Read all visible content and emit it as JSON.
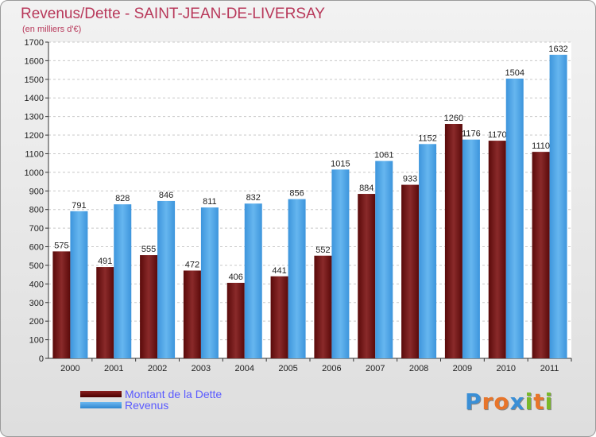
{
  "chart_data": {
    "type": "bar",
    "title": "Revenus/Dette - SAINT-JEAN-DE-LIVERSAY",
    "subtitle": "(en milliers d'€)",
    "categories": [
      "2000",
      "2001",
      "2002",
      "2003",
      "2004",
      "2005",
      "2006",
      "2007",
      "2008",
      "2009",
      "2010",
      "2011"
    ],
    "series": [
      {
        "name": "Montant de la Dette",
        "color": "#7a1a1a",
        "values": [
          575,
          491,
          555,
          472,
          406,
          441,
          552,
          884,
          933,
          1260,
          1170,
          1110
        ]
      },
      {
        "name": "Revenus",
        "color": "#4aa3e6",
        "values": [
          791,
          828,
          846,
          811,
          832,
          856,
          1015,
          1061,
          1152,
          1176,
          1504,
          1632
        ]
      }
    ],
    "ylim": [
      0,
      1700
    ],
    "ytick_step": 100,
    "grid": true,
    "legend_position": "bottom-left"
  },
  "logo": {
    "letters": [
      "P",
      "r",
      "o",
      "x",
      "i",
      "t",
      "i"
    ],
    "colors": [
      "#3a8fd6",
      "#e8752a",
      "#e8752a",
      "#3a8fd6",
      "#7ab82a",
      "#e8752a",
      "#7ab82a"
    ]
  }
}
